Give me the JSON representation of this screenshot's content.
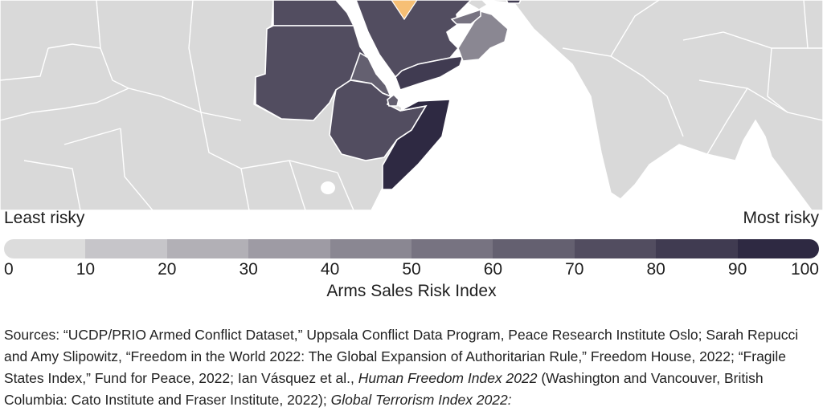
{
  "legend": {
    "least_label": "Least risky",
    "most_label": "Most risky",
    "title": "Arms Sales Risk Index",
    "ticks": [
      "0",
      "10",
      "20",
      "30",
      "40",
      "50",
      "60",
      "70",
      "80",
      "90",
      "100"
    ],
    "colors": [
      "#dcdcdc",
      "#c6c5c9",
      "#b2b0b6",
      "#9e9ba4",
      "#8a8792",
      "#777381",
      "#646070",
      "#524d60",
      "#403b51",
      "#2e2942"
    ]
  },
  "map": {
    "land_color": "#d9d9d9",
    "border_color": "#ffffff",
    "water_color": "#ffffff",
    "highlight_color": "#f6bf75",
    "regions": [
      {
        "name": "Egypt",
        "risk": 72
      },
      {
        "name": "Sudan",
        "risk": 75
      },
      {
        "name": "Saudi Arabia",
        "risk": 72
      },
      {
        "name": "Eritrea",
        "risk": 64
      },
      {
        "name": "Yemen",
        "risk": 87
      },
      {
        "name": "Oman",
        "risk": 48
      },
      {
        "name": "United Arab Emirates",
        "risk": 58
      },
      {
        "name": "Ethiopia",
        "risk": 76
      },
      {
        "name": "Djibouti",
        "risk": 63
      },
      {
        "name": "Somalia",
        "risk": 93
      }
    ]
  },
  "sources": {
    "p1": "Sources: “UCDP/PRIO Armed Conflict Dataset,” Uppsala Conflict Data Program, Peace Research Institute Oslo; Sarah Repucci and Amy Slipowitz, “Freedom in the World 2022: The Global Expansion of Authoritarian Rule,” Freedom House, 2022; “Fragile States Index,” Fund for Peace, 2022; Ian Vásquez et al.,",
    "italic1": "Human Freedom Index 2022",
    "p2": "(Washington and Vancouver, British Columbia: Cato Institute and Fraser Institute, 2022);",
    "italic2": "Global Terrorism Index 2022:"
  }
}
